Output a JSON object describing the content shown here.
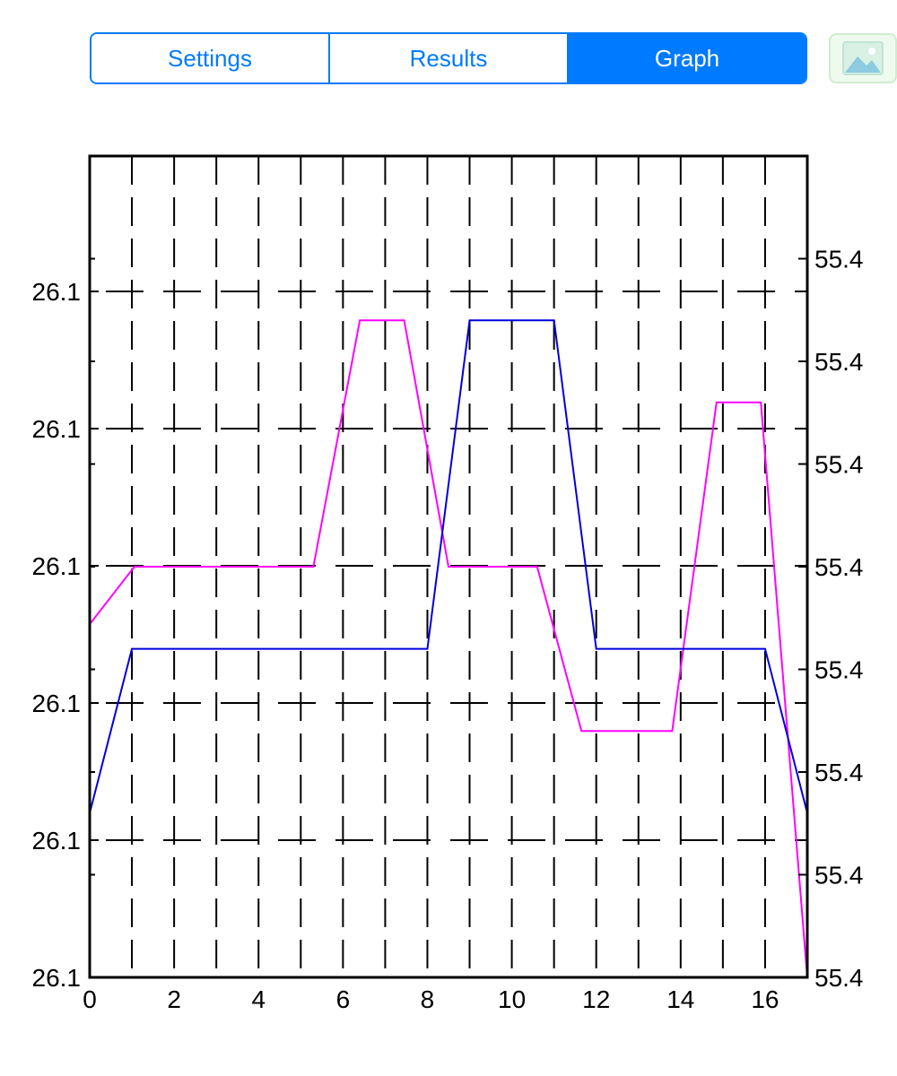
{
  "tabs": [
    {
      "label": "Settings",
      "active": false
    },
    {
      "label": "Results",
      "active": false
    },
    {
      "label": "Graph",
      "active": true
    }
  ],
  "image_button": {
    "icon": "image-icon"
  },
  "colors": {
    "accent": "#007aff",
    "series_magenta": "#ff00ff",
    "series_blue": "#0000dd"
  },
  "chart_data": {
    "type": "line",
    "title": "",
    "xlabel": "",
    "ylabel": "",
    "xlim": [
      0,
      17
    ],
    "x_ticks": [
      "0",
      "2",
      "4",
      "6",
      "8",
      "10",
      "12",
      "14",
      "16"
    ],
    "y_left_ticks": [
      "26.1",
      "26.1",
      "26.1",
      "26.1",
      "26.1",
      "26.1"
    ],
    "y_right_ticks": [
      "55.4",
      "55.4",
      "55.4",
      "55.4",
      "55.4",
      "55.4",
      "55.4",
      "55.4"
    ],
    "grid": true,
    "series": [
      {
        "axis": "right",
        "color": "#ff00ff",
        "x": [
          0,
          1.06,
          5.3,
          6.4,
          7.45,
          8.5,
          10.6,
          11.65,
          13.8,
          14.85,
          15.9,
          17
        ],
        "y": [
          0.43,
          0.5,
          0.5,
          0.8,
          0.8,
          0.5,
          0.5,
          0.3,
          0.3,
          0.7,
          0.7,
          0
        ]
      },
      {
        "axis": "left",
        "color": "#0000dd",
        "x": [
          0,
          1,
          8,
          9,
          11,
          12,
          16,
          17
        ],
        "y": [
          0.2,
          0.4,
          0.4,
          0.8,
          0.8,
          0.4,
          0.4,
          0.2
        ]
      }
    ]
  }
}
